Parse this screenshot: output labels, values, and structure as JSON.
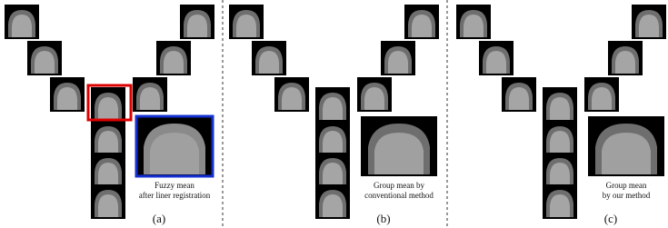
{
  "panels": [
    {
      "caption": [
        "Fuzzy mean",
        "after liner registration"
      ],
      "label": "(a)"
    },
    {
      "caption": [
        "Group mean by",
        "conventional method"
      ],
      "label": "(b)"
    },
    {
      "caption": [
        "Group mean",
        "by our method"
      ],
      "label": "(c)"
    }
  ]
}
